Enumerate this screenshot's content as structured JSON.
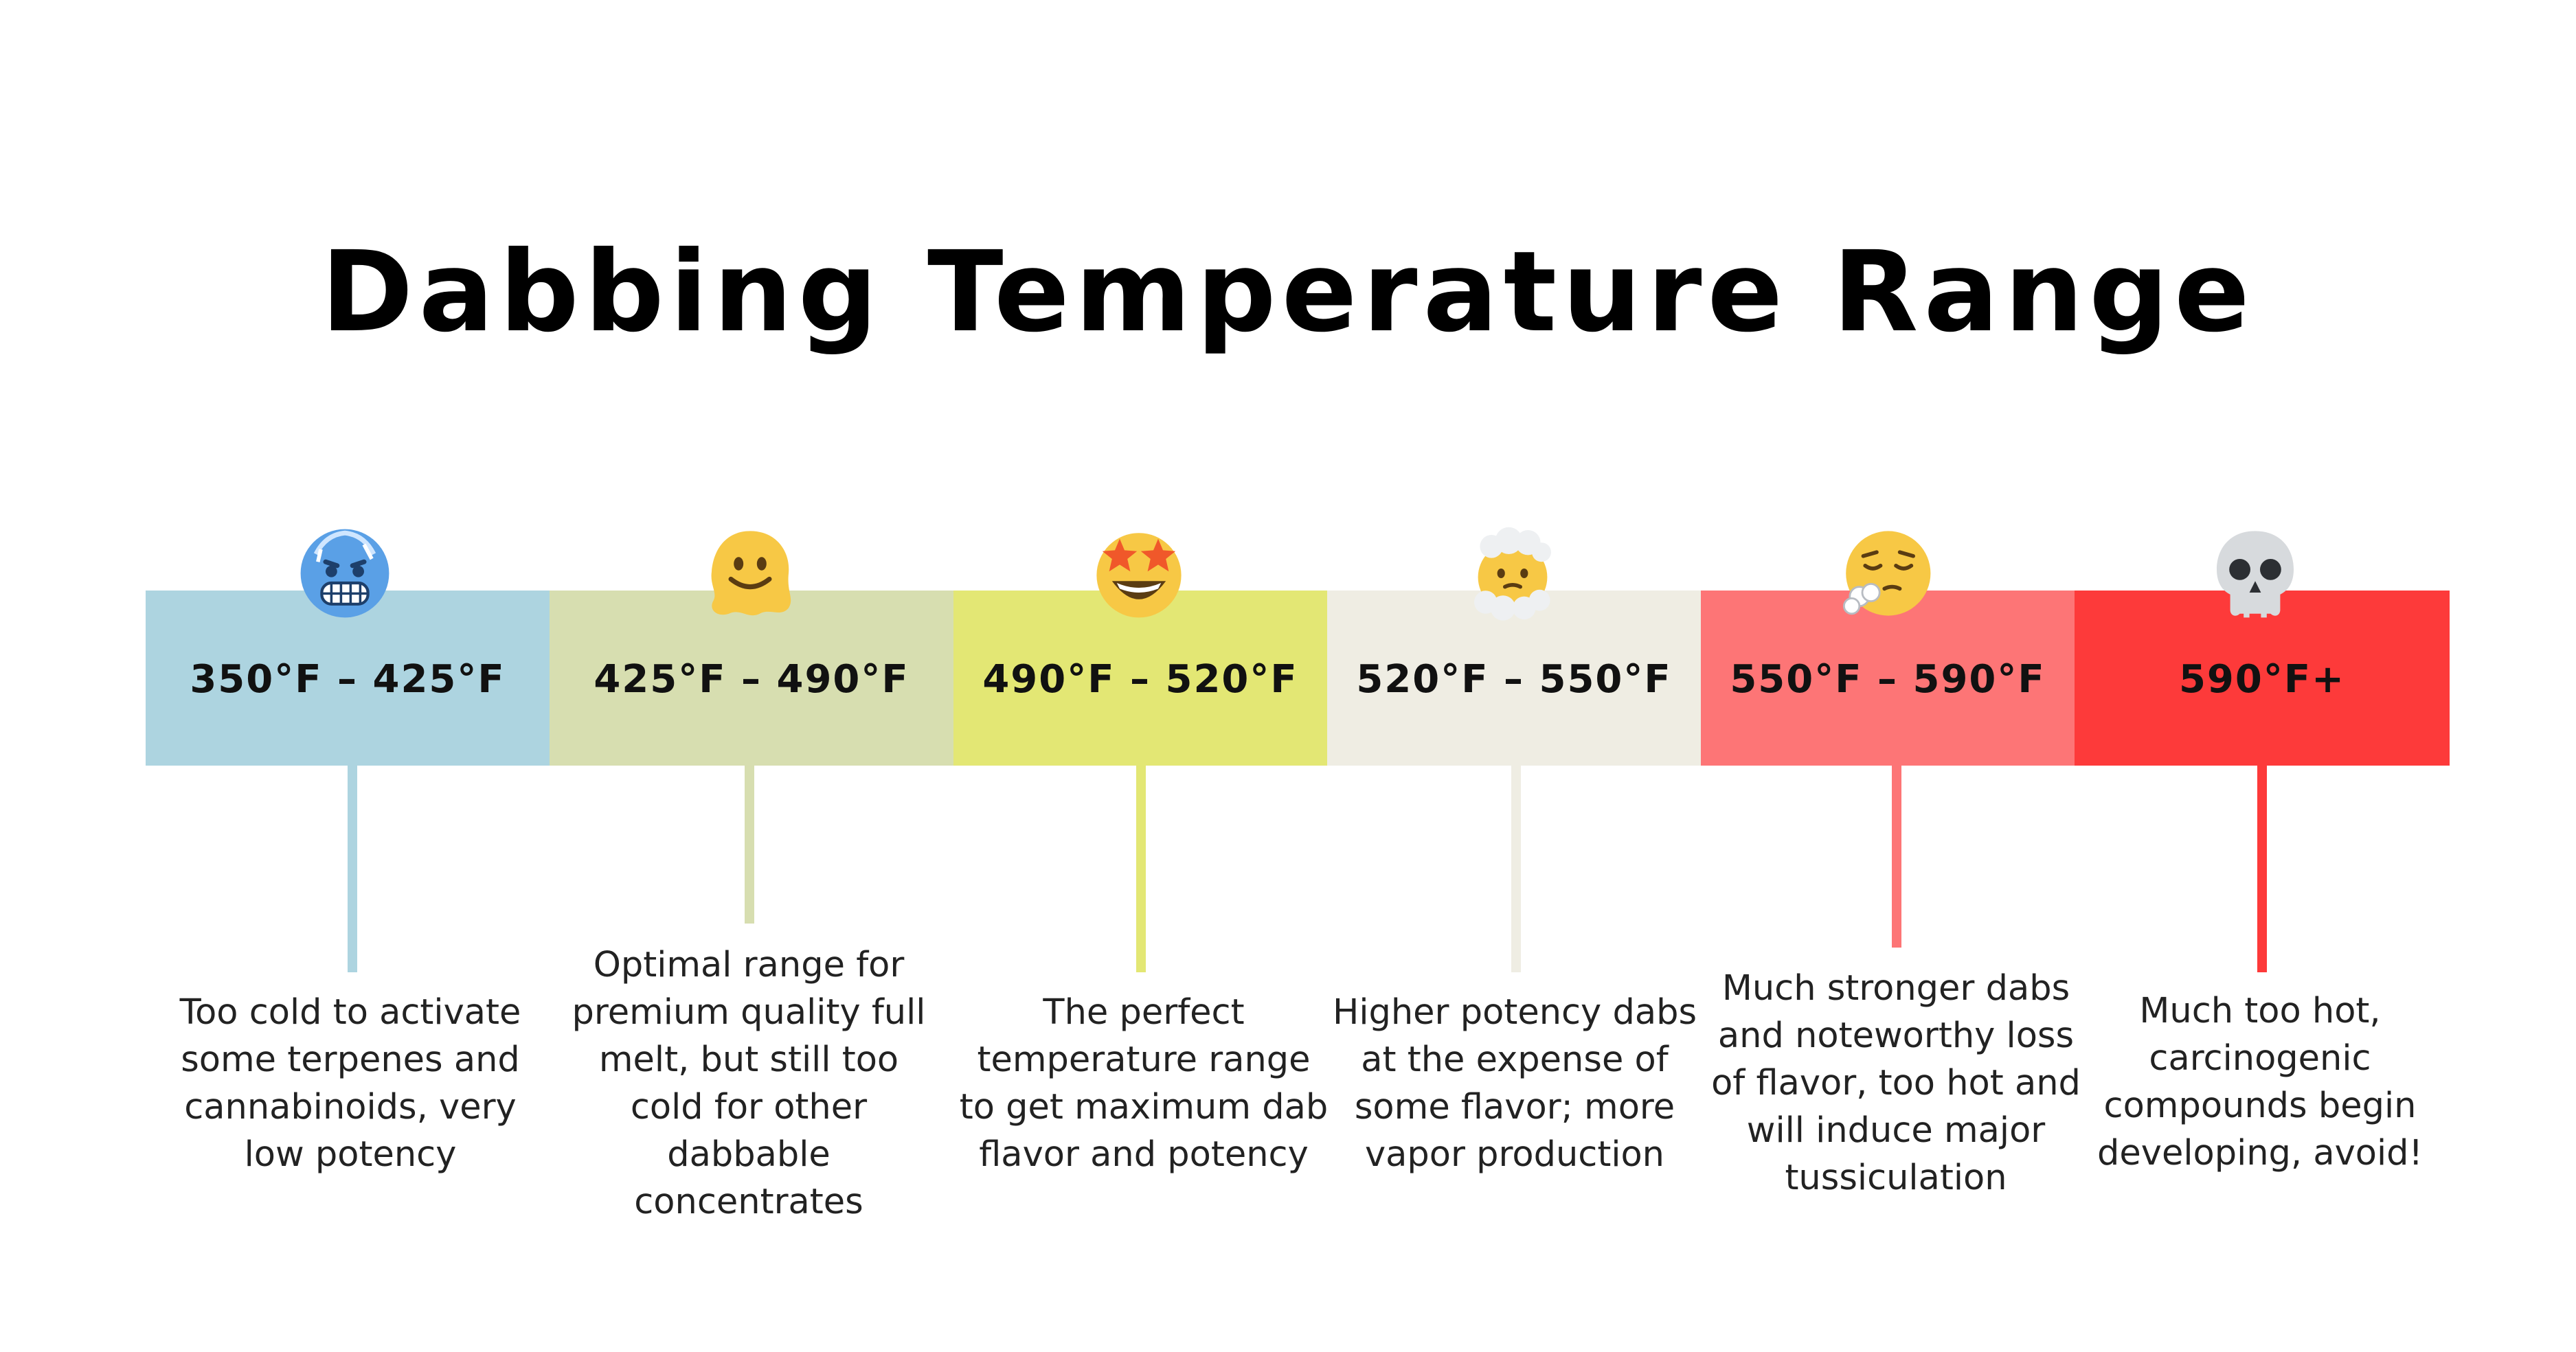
{
  "title": "Dabbing Temperature Range",
  "colors": {
    "cold": "#add4e0",
    "optimal": "#d7deb0",
    "perfect": "#e3e774",
    "higher": "#efede3",
    "stronger": "#fd7576",
    "too_hot": "#fd3a3a"
  },
  "ranges": [
    {
      "label": "350°F – 425°F",
      "emoji": "cold-face-icon",
      "description": [
        "Too cold to activate",
        "some terpenes and",
        "cannabinoids, very",
        "low potency"
      ]
    },
    {
      "label": "425°F – 490°F",
      "emoji": "melting-face-icon",
      "description": [
        "Optimal range for",
        "premium quality full",
        "melt, but still too",
        "cold for other",
        "dabbable",
        "concentrates"
      ]
    },
    {
      "label": "490°F – 520°F",
      "emoji": "star-struck-icon",
      "description": [
        "The perfect",
        "temperature range",
        "to get maximum dab",
        "flavor and potency"
      ]
    },
    {
      "label": "520°F – 550°F",
      "emoji": "face-in-clouds-icon",
      "description": [
        "Higher potency dabs",
        "at the expense of",
        "some flavor; more",
        "vapor production"
      ]
    },
    {
      "label": "550°F – 590°F",
      "emoji": "face-exhaling-icon",
      "description": [
        "Much stronger dabs",
        "and noteworthy loss",
        "of flavor, too hot and",
        "will induce major",
        "tussiculation"
      ]
    },
    {
      "label": "590°F+",
      "emoji": "skull-icon",
      "description": [
        "Much too hot,",
        "carcinogenic",
        "compounds begin",
        "developing, avoid!"
      ]
    }
  ]
}
